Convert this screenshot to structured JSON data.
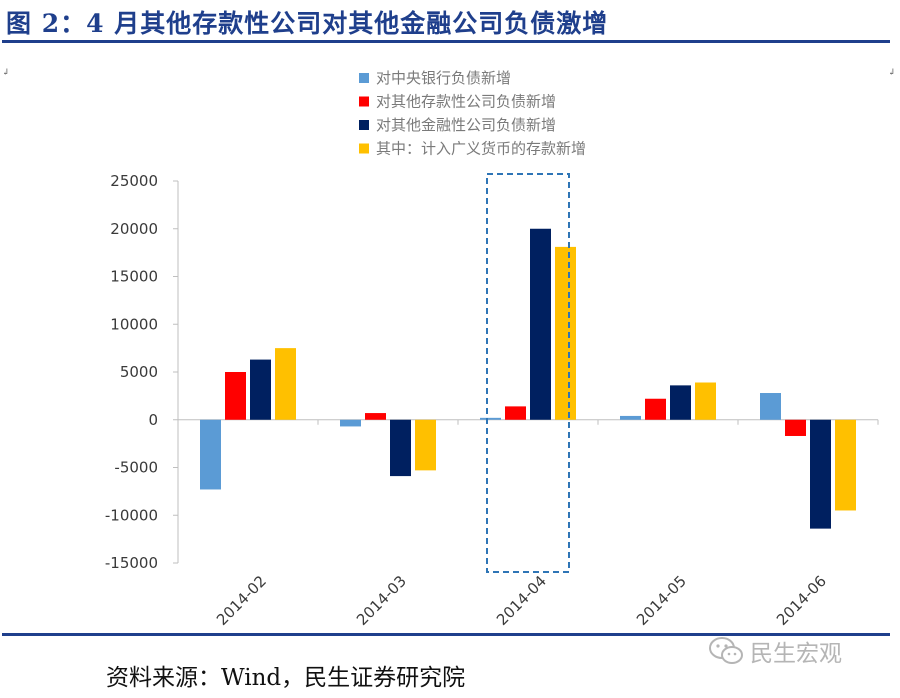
{
  "header": {
    "title": "图 2：4 月其他存款性公司对其他金融公司负债激增"
  },
  "footer": {
    "source": "资料来源：Wind，民生证券研究院",
    "brand": "民生宏观"
  },
  "colors": {
    "series": [
      "#5b9bd5",
      "#ff0000",
      "#002060",
      "#ffc000"
    ],
    "highlight": "#2e75b6",
    "rule": "#1f3f8c"
  },
  "chart_data": {
    "type": "bar",
    "categories": [
      "2014-02",
      "2014-03",
      "2014-04",
      "2014-05",
      "2014-06"
    ],
    "series": [
      {
        "name": "对中央银行负债新增",
        "values": [
          -7300,
          -700,
          200,
          400,
          2800
        ]
      },
      {
        "name": "对其他存款性公司负债新增",
        "values": [
          5000,
          700,
          1400,
          2200,
          -1700
        ]
      },
      {
        "name": "对其他金融性公司负债新增",
        "values": [
          6300,
          -5900,
          20000,
          3600,
          -11400
        ]
      },
      {
        "name": "其中：计入广义货币的存款新增",
        "values": [
          7500,
          -5300,
          18100,
          3900,
          -9500
        ]
      }
    ],
    "ylim": [
      -15000,
      25000
    ],
    "yticks": [
      25000,
      20000,
      15000,
      10000,
      5000,
      0,
      -5000,
      -10000,
      -15000
    ],
    "highlighted_category": "2014-04",
    "legend_position": "top",
    "grid": false
  }
}
